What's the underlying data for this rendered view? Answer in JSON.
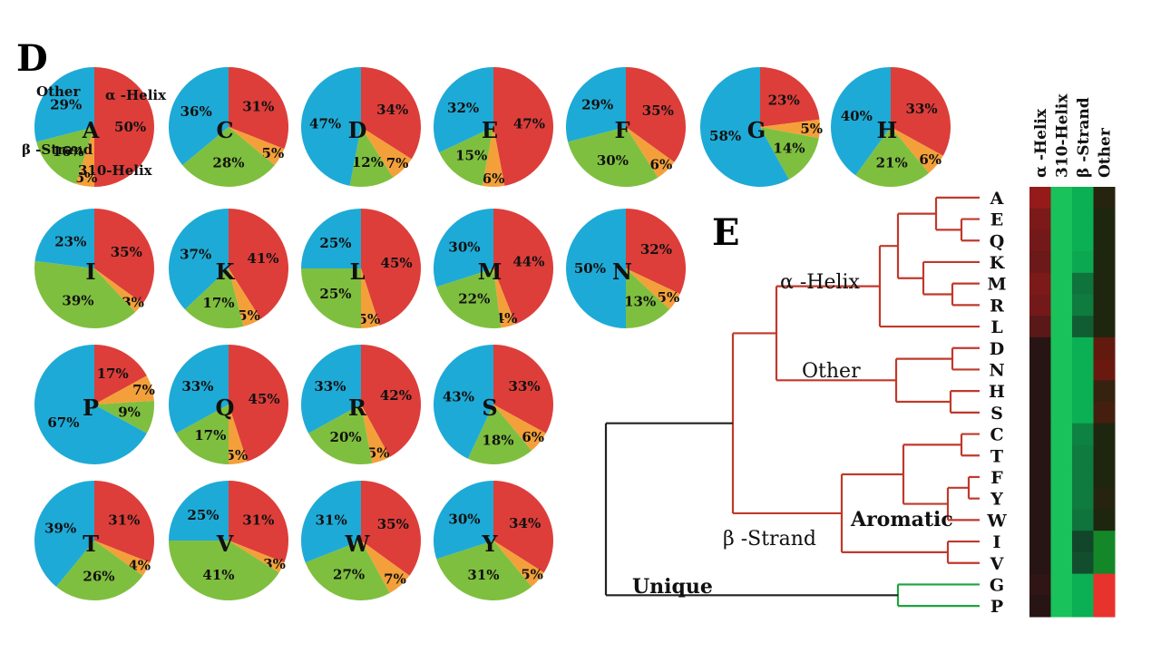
{
  "panel_d_label": "D",
  "panel_e_label": "E",
  "colors": {
    "alpha_helix": "#dd3e3a",
    "helix_310": "#f4a03a",
    "beta_strand": "#7fbf3f",
    "other": "#1eaad6",
    "tree_line": "#222222",
    "tree_red": "#c0392b",
    "tree_green": "#1fa33c"
  },
  "pie_legend": {
    "alpha_helix": "α -Helix",
    "helix_310": "310-Helix",
    "beta_strand": "β -Strand",
    "other": "Other"
  },
  "chart_data": [
    {
      "type": "pie",
      "categories": [
        "α-Helix",
        "310-Helix",
        "β-Strand",
        "Other"
      ],
      "pies": [
        {
          "label": "A",
          "values": [
            50,
            5,
            16,
            29
          ]
        },
        {
          "label": "C",
          "values": [
            31,
            5,
            28,
            36
          ]
        },
        {
          "label": "D",
          "values": [
            34,
            7,
            12,
            47
          ]
        },
        {
          "label": "E",
          "values": [
            47,
            6,
            15,
            32
          ]
        },
        {
          "label": "F",
          "values": [
            35,
            6,
            30,
            29
          ]
        },
        {
          "label": "G",
          "values": [
            23,
            5,
            14,
            58
          ]
        },
        {
          "label": "H",
          "values": [
            33,
            6,
            21,
            40
          ]
        },
        {
          "label": "I",
          "values": [
            35,
            3,
            39,
            23
          ]
        },
        {
          "label": "K",
          "values": [
            41,
            5,
            17,
            37
          ]
        },
        {
          "label": "L",
          "values": [
            45,
            5,
            25,
            25
          ]
        },
        {
          "label": "M",
          "values": [
            44,
            4,
            22,
            30
          ]
        },
        {
          "label": "N",
          "values": [
            32,
            5,
            13,
            50
          ]
        },
        {
          "label": "P",
          "values": [
            17,
            7,
            9,
            67
          ]
        },
        {
          "label": "Q",
          "values": [
            45,
            5,
            17,
            33
          ]
        },
        {
          "label": "R",
          "values": [
            42,
            5,
            20,
            33
          ]
        },
        {
          "label": "S",
          "values": [
            33,
            6,
            18,
            43
          ]
        },
        {
          "label": "T",
          "values": [
            31,
            4,
            26,
            39
          ]
        },
        {
          "label": "V",
          "values": [
            31,
            3,
            41,
            25
          ]
        },
        {
          "label": "W",
          "values": [
            35,
            7,
            27,
            31
          ]
        },
        {
          "label": "Y",
          "values": [
            34,
            5,
            31,
            30
          ]
        }
      ]
    },
    {
      "type": "heatmap",
      "columns": [
        "α -Helix",
        "310-Helix",
        "β -Strand",
        "Other"
      ],
      "rows": [
        "A",
        "E",
        "Q",
        "K",
        "M",
        "R",
        "L",
        "D",
        "N",
        "H",
        "S",
        "C",
        "T",
        "F",
        "Y",
        "W",
        "I",
        "V",
        "G",
        "P"
      ],
      "clades": {
        "alpha_helix": "α -Helix",
        "other": "Other",
        "beta_strand": "β -Strand",
        "aromatic": "Aromatic",
        "unique": "Unique"
      }
    }
  ]
}
